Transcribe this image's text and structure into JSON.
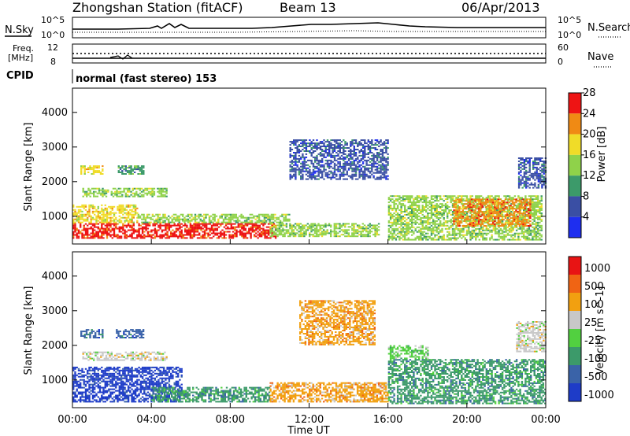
{
  "header": {
    "station": "Zhongshan Station (fitACF)",
    "beam": "Beam 13",
    "date": "06/Apr/2013"
  },
  "nsky_panel": {
    "left_label": "N.Sky",
    "right_label": "N.Search",
    "left_ticks": [
      "10^5",
      "10^0"
    ],
    "right_ticks": [
      "10^5",
      "10^0"
    ]
  },
  "freq_panel": {
    "left_label_1": "Freq.",
    "left_label_2": "[MHz]",
    "right_label": "Nave",
    "left_ticks": [
      "12",
      "8"
    ],
    "right_ticks": [
      "60",
      "0"
    ]
  },
  "cpid": {
    "label": "CPID",
    "value": "normal (fast stereo) 153"
  },
  "chart_data": [
    {
      "type": "heatmap",
      "name": "power",
      "ylabel": "Slant Range [km]",
      "yticks": [
        1000,
        2000,
        3000,
        4000
      ],
      "ylim": [
        200,
        4700
      ],
      "colorbar_label": "Power [dB]",
      "colorbar_ticks": [
        4,
        8,
        12,
        16,
        20,
        24,
        28
      ],
      "colors": [
        "#1e2ef0",
        "#3a4fa4",
        "#3c9a6a",
        "#8fd24a",
        "#f0dc28",
        "#f08a14",
        "#ee1414"
      ],
      "regions": [
        {
          "t0": 0.0,
          "t1": 10.3,
          "r0": 350,
          "r1": 800,
          "level": 6
        },
        {
          "t0": 0.0,
          "t1": 3.3,
          "r0": 800,
          "r1": 1300,
          "level": 4
        },
        {
          "t0": 3.3,
          "t1": 11.0,
          "r0": 800,
          "r1": 1050,
          "level": 3
        },
        {
          "t0": 10.0,
          "t1": 15.5,
          "r0": 400,
          "r1": 800,
          "level": 3
        },
        {
          "t0": 0.4,
          "t1": 1.5,
          "r0": 2200,
          "r1": 2450,
          "level": 4
        },
        {
          "t0": 2.3,
          "t1": 3.6,
          "r0": 2200,
          "r1": 2450,
          "level": 2
        },
        {
          "t0": 0.5,
          "t1": 4.8,
          "r0": 1550,
          "r1": 1800,
          "level": 3
        },
        {
          "t0": 11.0,
          "t1": 16.0,
          "r0": 2050,
          "r1": 3200,
          "level": 1
        },
        {
          "t0": 16.0,
          "t1": 23.8,
          "r0": 300,
          "r1": 1600,
          "level": 3
        },
        {
          "t0": 19.3,
          "t1": 23.2,
          "r0": 700,
          "r1": 1500,
          "level": 5
        },
        {
          "t0": 22.6,
          "t1": 24.0,
          "r0": 1800,
          "r1": 2700,
          "level": 1
        }
      ]
    },
    {
      "type": "heatmap",
      "name": "velocity",
      "xlabel": "Time UT",
      "ylabel": "Slant Range [km]",
      "yticks": [
        1000,
        2000,
        3000,
        4000
      ],
      "ylim": [
        200,
        4700
      ],
      "xticks": [
        "00:00",
        "04:00",
        "08:00",
        "12:00",
        "16:00",
        "20:00",
        "00:00"
      ],
      "colorbar_label": "Velocity [m s^-1]",
      "colorbar_ticks": [
        "1000",
        "500",
        "100",
        "25",
        "-25",
        "-100",
        "-500",
        "-1000"
      ],
      "colors": [
        "#1e3cc8",
        "#3a63a8",
        "#3c9a6a",
        "#52d040",
        "#c8c8c8",
        "#f2a010",
        "#f06414",
        "#e81414"
      ],
      "regions": [
        {
          "t0": 0.0,
          "t1": 5.5,
          "r0": 350,
          "r1": 1350,
          "level": 0
        },
        {
          "t0": 4.0,
          "t1": 10.0,
          "r0": 350,
          "r1": 800,
          "level": 2
        },
        {
          "t0": 10.0,
          "t1": 16.0,
          "r0": 350,
          "r1": 900,
          "level": 5
        },
        {
          "t0": 11.5,
          "t1": 15.3,
          "r0": 2000,
          "r1": 3300,
          "level": 5
        },
        {
          "t0": 0.4,
          "t1": 1.5,
          "r0": 2200,
          "r1": 2450,
          "level": 1
        },
        {
          "t0": 2.2,
          "t1": 3.6,
          "r0": 2200,
          "r1": 2450,
          "level": 1
        },
        {
          "t0": 0.5,
          "t1": 4.8,
          "r0": 1550,
          "r1": 1800,
          "level": 4
        },
        {
          "t0": 16.0,
          "t1": 24.0,
          "r0": 300,
          "r1": 1600,
          "level": 2
        },
        {
          "t0": 16.0,
          "t1": 18.0,
          "r0": 1600,
          "r1": 2000,
          "level": 3
        },
        {
          "t0": 22.5,
          "t1": 24.0,
          "r0": 1800,
          "r1": 2700,
          "level": 4
        }
      ]
    }
  ]
}
